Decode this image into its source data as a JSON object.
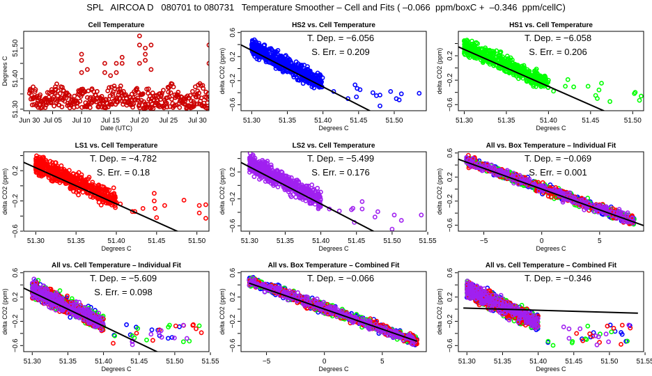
{
  "header": {
    "title": "SPL   AIRCOA D   080701 to 080731   Temperature Smoother – Cell and Fits ( –0.066  ppm/boxC +  –0.346  ppm/cellC)"
  },
  "colors": {
    "HS2": "#0000ff",
    "HS1": "#00ff00",
    "LS1": "#ff0000",
    "LS2": "#a020f0",
    "cell": "#cc0000",
    "fit": "#000000"
  },
  "chart_data": [
    {
      "id": "cell-temp",
      "type": "scatter",
      "title": "Cell Temperature",
      "xlabel": "Date (UTC)",
      "ylabel": "Degrees C",
      "xlim": [
        0,
        32
      ],
      "ylim": [
        51.295,
        51.555
      ],
      "xticks": [
        1,
        5,
        10,
        15,
        20,
        25,
        30
      ],
      "xtick_labels": [
        "Jun 30",
        "Jul 05",
        "Jul 10",
        "Jul 15",
        "Jul 20",
        "Jul 25",
        "Jul 30"
      ],
      "yticks": [
        51.3,
        51.35,
        51.4,
        51.45,
        51.5
      ],
      "ytick_labels": [
        "51.30",
        "",
        "51.40",
        "",
        "51.50"
      ],
      "series": [
        {
          "name": "Cell",
          "color_key": "cell",
          "band": [
            51.3,
            51.38
          ],
          "outliers": [
            [
              10,
              51.48
            ],
            [
              10,
              51.46
            ],
            [
              10,
              51.42
            ],
            [
              11,
              51.43
            ],
            [
              14,
              51.45
            ],
            [
              14,
              51.42
            ],
            [
              15,
              51.41
            ],
            [
              16,
              51.45
            ],
            [
              16,
              51.42
            ],
            [
              17,
              51.47
            ],
            [
              17,
              51.45
            ],
            [
              20,
              51.54
            ],
            [
              20,
              51.51
            ],
            [
              20,
              51.45
            ],
            [
              21,
              51.5
            ],
            [
              21,
              51.48
            ],
            [
              21,
              51.46
            ],
            [
              22,
              51.51
            ],
            [
              22,
              51.43
            ],
            [
              32,
              51.51
            ],
            [
              32,
              51.45
            ]
          ]
        }
      ]
    },
    {
      "id": "hs2-cell",
      "type": "scatter",
      "title": "HS2 vs. Cell Temperature",
      "xlabel": "Degrees C",
      "ylabel": "delta CO2 (ppm)",
      "xlim": [
        51.285,
        51.545
      ],
      "ylim": [
        -0.7,
        0.62
      ],
      "xticks": [
        51.3,
        51.35,
        51.4,
        51.45,
        51.5
      ],
      "yticks": [
        -0.6,
        -0.4,
        -0.2,
        0.0,
        0.2,
        0.4,
        0.6
      ],
      "ytick_labels": [
        "−0.6",
        "",
        "−0.2",
        "",
        "0.2",
        "",
        "0.6"
      ],
      "annotations": [
        "T. Dep. =  −6.056",
        "S. Err. =  0.209"
      ],
      "fit": {
        "slope": -6.056,
        "x0": 51.35,
        "y0": 0.0
      },
      "series": [
        {
          "name": "HS2",
          "color_key": "HS2",
          "cluster": {
            "x": [
              51.3,
              51.4
            ],
            "y_top": 0.55,
            "spread": 0.2
          },
          "outliers": [
            [
              51.445,
              -0.27
            ],
            [
              51.448,
              -0.33
            ],
            [
              51.452,
              -0.35
            ],
            [
              51.47,
              -0.4
            ],
            [
              51.475,
              -0.45
            ],
            [
              51.48,
              -0.44
            ],
            [
              51.48,
              -0.62
            ],
            [
              51.495,
              -0.38
            ],
            [
              51.503,
              -0.5
            ],
            [
              51.507,
              -0.52
            ],
            [
              51.51,
              -0.42
            ],
            [
              51.535,
              -0.41
            ],
            [
              51.415,
              -0.38
            ],
            [
              51.435,
              -0.5
            ],
            [
              51.447,
              -0.47
            ]
          ]
        }
      ]
    },
    {
      "id": "hs1-cell",
      "type": "scatter",
      "title": "HS1 vs. Cell Temperature",
      "xlabel": "Degrees C",
      "ylabel": "delta CO2 (ppm)",
      "xlim": [
        51.293,
        51.513
      ],
      "ylim": [
        -0.7,
        0.6
      ],
      "xticks": [
        51.3,
        51.35,
        51.4,
        51.45,
        51.5
      ],
      "yticks": [
        -0.6,
        -0.4,
        -0.2,
        0.0,
        0.2,
        0.4
      ],
      "ytick_labels": [
        "−0.6",
        "",
        "−0.2",
        "",
        "0.2",
        ""
      ],
      "annotations": [
        "T. Dep. =  −6.058",
        "S. Err. =  0.206"
      ],
      "fit": {
        "slope": -6.058,
        "x0": 51.35,
        "y0": 0.0
      },
      "series": [
        {
          "name": "HS1",
          "color_key": "HS1",
          "cluster": {
            "x": [
              51.3,
              51.4
            ],
            "y_top": 0.55,
            "spread": 0.2
          },
          "outliers": [
            [
              51.42,
              -0.3
            ],
            [
              51.423,
              -0.19
            ],
            [
              51.43,
              -0.31
            ],
            [
              51.447,
              -0.3
            ],
            [
              51.456,
              -0.45
            ],
            [
              51.458,
              -0.5
            ],
            [
              51.46,
              -0.36
            ],
            [
              51.463,
              -0.25
            ],
            [
              51.473,
              -0.55
            ],
            [
              51.502,
              -0.42
            ],
            [
              51.503,
              -0.4
            ],
            [
              51.508,
              -0.53
            ],
            [
              51.51,
              -0.46
            ],
            [
              51.406,
              -0.38
            ]
          ]
        }
      ]
    },
    {
      "id": "ls1-cell",
      "type": "scatter",
      "title": "LS1 vs. Cell Temperature",
      "xlabel": "Degrees C",
      "ylabel": "delta CO2 (ppm)",
      "xlim": [
        51.285,
        51.515
      ],
      "ylim": [
        -0.6,
        0.45
      ],
      "xticks": [
        51.3,
        51.35,
        51.4,
        51.45,
        51.5
      ],
      "yticks": [
        -0.6,
        -0.4,
        -0.2,
        0.0,
        0.2,
        0.4
      ],
      "ytick_labels": [
        "−0.6",
        "",
        "−0.2",
        "",
        "0.2",
        ""
      ],
      "annotations": [
        "T. Dep. =  −4.782",
        "S. Err. =  0.18"
      ],
      "fit": {
        "slope": -4.782,
        "x0": 51.35,
        "y0": 0.0
      },
      "series": [
        {
          "name": "LS1",
          "color_key": "LS1",
          "cluster": {
            "x": [
              51.3,
              51.4
            ],
            "y_top": 0.4,
            "spread": 0.18
          },
          "outliers": [
            [
              51.42,
              -0.34
            ],
            [
              51.423,
              -0.34
            ],
            [
              51.433,
              -0.3
            ],
            [
              51.447,
              -0.1
            ],
            [
              51.447,
              -0.2
            ],
            [
              51.448,
              -0.3
            ],
            [
              51.45,
              -0.42
            ],
            [
              51.46,
              -0.26
            ],
            [
              51.484,
              -0.19
            ],
            [
              51.503,
              -0.26
            ],
            [
              51.503,
              -0.36
            ],
            [
              51.511,
              -0.25
            ],
            [
              51.511,
              -0.43
            ],
            [
              51.405,
              -0.24
            ],
            [
              51.4,
              -0.22
            ]
          ]
        }
      ]
    },
    {
      "id": "ls2-cell",
      "type": "scatter",
      "title": "LS2 vs. Cell Temperature",
      "xlabel": "Degrees C",
      "ylabel": "delta CO2 (ppm)",
      "xlim": [
        51.288,
        51.548
      ],
      "ylim": [
        -0.68,
        0.5
      ],
      "xticks": [
        51.3,
        51.35,
        51.4,
        51.45,
        51.5,
        51.55
      ],
      "yticks": [
        -0.6,
        -0.4,
        -0.2,
        0.0,
        0.2,
        0.4
      ],
      "ytick_labels": [
        "−0.6",
        "",
        "−0.2",
        "",
        "0.2",
        ""
      ],
      "annotations": [
        "T. Dep. =  −5.499",
        "S. Err. =  0.176"
      ],
      "fit": {
        "slope": -5.499,
        "x0": 51.35,
        "y0": 0.0
      },
      "series": [
        {
          "name": "LS2",
          "color_key": "LS2",
          "cluster": {
            "x": [
              51.3,
              51.4
            ],
            "y_top": 0.45,
            "spread": 0.2
          },
          "outliers": [
            [
              51.412,
              -0.35
            ],
            [
              51.426,
              -0.38
            ],
            [
              51.443,
              -0.36
            ],
            [
              51.445,
              -0.34
            ],
            [
              51.447,
              -0.55
            ],
            [
              51.458,
              -0.35
            ],
            [
              51.458,
              -0.24
            ],
            [
              51.476,
              -0.47
            ],
            [
              51.48,
              -0.39
            ],
            [
              51.5,
              -0.65
            ],
            [
              51.503,
              -0.44
            ],
            [
              51.513,
              -0.52
            ],
            [
              51.541,
              -0.44
            ]
          ]
        }
      ]
    },
    {
      "id": "all-box-indiv",
      "type": "scatter",
      "title": "All vs. Box Temperature – Individual Fit",
      "xlabel": "Degrees C",
      "ylabel": "delta CO2 (ppm)",
      "xlim": [
        -7.2,
        8.8
      ],
      "ylim": [
        -0.7,
        0.62
      ],
      "xticks": [
        -5,
        0,
        5
      ],
      "yticks": [
        -0.6,
        -0.4,
        -0.2,
        0.0,
        0.2,
        0.4,
        0.6
      ],
      "ytick_labels": [
        "−0.6",
        "",
        "−0.2",
        "",
        "0.2",
        "",
        "0.6"
      ],
      "annotations": [
        "T. Dep. =  −0.069",
        "S. Err. =  0.001"
      ],
      "fit": {
        "slope": -0.069,
        "x0": 0,
        "y0": 0.0
      },
      "series": [
        {
          "name": "HS2",
          "color_key": "HS2"
        },
        {
          "name": "HS1",
          "color_key": "HS1"
        },
        {
          "name": "LS1",
          "color_key": "LS1"
        },
        {
          "name": "LS2",
          "color_key": "LS2"
        }
      ]
    },
    {
      "id": "all-cell-indiv",
      "type": "scatter",
      "title": "All vs. Cell Temperature – Individual Fit",
      "xlabel": "Degrees C",
      "ylabel": "delta CO2 (ppm)",
      "xlim": [
        51.288,
        51.548
      ],
      "ylim": [
        -0.7,
        0.62
      ],
      "xticks": [
        51.3,
        51.35,
        51.4,
        51.45,
        51.5,
        51.55
      ],
      "yticks": [
        -0.6,
        -0.4,
        -0.2,
        0.0,
        0.2,
        0.4,
        0.6
      ],
      "ytick_labels": [
        "−0.6",
        "",
        "−0.2",
        "",
        "0.2",
        "",
        "0.6"
      ],
      "annotations": [
        "T. Dep. =  −5.609",
        "S. Err. =  0.098"
      ],
      "fit": {
        "slope": -5.609,
        "x0": 51.35,
        "y0": 0.0
      },
      "series": [
        {
          "name": "HS2",
          "color_key": "HS2"
        },
        {
          "name": "HS1",
          "color_key": "HS1"
        },
        {
          "name": "LS1",
          "color_key": "LS1"
        },
        {
          "name": "LS2",
          "color_key": "LS2"
        }
      ]
    },
    {
      "id": "all-box-comb",
      "type": "scatter",
      "title": "All vs. Box Temperature – Combined Fit",
      "xlabel": "Degrees C",
      "ylabel": "delta CO2 (ppm)",
      "xlim": [
        -7.2,
        8.8
      ],
      "ylim": [
        -0.7,
        0.62
      ],
      "xticks": [
        -5,
        0,
        5
      ],
      "yticks": [
        -0.6,
        -0.4,
        -0.2,
        0.0,
        0.2,
        0.4,
        0.6
      ],
      "ytick_labels": [
        "−0.6",
        "",
        "−0.2",
        "",
        "0.2",
        "",
        "0.6"
      ],
      "annotations": [
        "T. Dep. =  −0.066"
      ],
      "fit": {
        "slope": -0.066,
        "x0": 0,
        "y0": 0.0,
        "xrange": [
          -6.5,
          8.0
        ]
      },
      "series": [
        {
          "name": "HS2",
          "color_key": "HS2"
        },
        {
          "name": "HS1",
          "color_key": "HS1"
        },
        {
          "name": "LS1",
          "color_key": "LS1"
        },
        {
          "name": "LS2",
          "color_key": "LS2"
        }
      ]
    },
    {
      "id": "all-cell-comb",
      "type": "scatter",
      "title": "All vs. Cell Temperature – Combined Fit",
      "xlabel": "Degrees C",
      "ylabel": "delta CO2 (ppm)",
      "xlim": [
        51.288,
        51.548
      ],
      "ylim": [
        -0.7,
        0.62
      ],
      "xticks": [
        51.3,
        51.35,
        51.4,
        51.45,
        51.5,
        51.55
      ],
      "yticks": [
        -0.6,
        -0.4,
        -0.2,
        0.0,
        0.2,
        0.4,
        0.6
      ],
      "ytick_labels": [
        "−0.6",
        "",
        "−0.2",
        "",
        "0.2",
        "",
        "0.6"
      ],
      "annotations": [
        "T. Dep. =  −0.346"
      ],
      "fit": {
        "slope": -0.346,
        "x0": 51.35,
        "y0": 0.0,
        "xrange": [
          51.295,
          51.54
        ]
      },
      "series": [
        {
          "name": "HS2",
          "color_key": "HS2"
        },
        {
          "name": "HS1",
          "color_key": "HS1"
        },
        {
          "name": "LS1",
          "color_key": "LS1"
        },
        {
          "name": "LS2",
          "color_key": "LS2"
        }
      ]
    }
  ]
}
